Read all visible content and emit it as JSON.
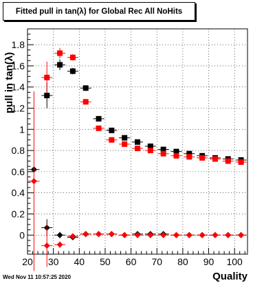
{
  "chart_data": {
    "type": "scatter",
    "title": "Fitted pull in tan(λ) for Global Rec All NoHits",
    "xlabel": "Quality",
    "ylabel": "pull in tan(λ)",
    "xlim": [
      20,
      105
    ],
    "ylim": [
      -0.18,
      1.95
    ],
    "xticks": [
      "20",
      "30",
      "40",
      "50",
      "60",
      "70",
      "80",
      "90",
      "100"
    ],
    "yticks": [
      "0",
      "0.2",
      "0.4",
      "0.6",
      "0.8",
      "1",
      "1.2",
      "1.4",
      "1.6",
      "1.8"
    ],
    "footer": "Wed Nov 11 10:57:25 2020",
    "series": [
      {
        "color": "#000000",
        "marker": "square",
        "x": [
          27.5,
          32.5,
          37.5,
          42.5,
          47.5,
          52.5,
          57.5,
          62.5,
          67.5,
          72.5,
          77.5,
          82.5,
          87.5,
          92.5,
          97.5,
          102.5
        ],
        "y": [
          1.32,
          1.61,
          1.55,
          1.39,
          1.1,
          0.99,
          0.92,
          0.88,
          0.84,
          0.81,
          0.79,
          0.77,
          0.75,
          0.73,
          0.72,
          0.71
        ],
        "yerr": [
          0.12,
          0.05,
          0.03,
          0.02,
          0.015,
          0.01,
          0.01,
          0.01,
          0.01,
          0.01,
          0.01,
          0.01,
          0.01,
          0.01,
          0.01,
          0.01
        ]
      },
      {
        "color": "#ff0000",
        "marker": "square",
        "x": [
          27.5,
          32.5,
          37.5,
          42.5,
          47.5,
          52.5,
          57.5,
          62.5,
          67.5,
          72.5,
          77.5,
          82.5,
          87.5,
          92.5,
          97.5,
          102.5
        ],
        "y": [
          1.49,
          1.72,
          1.68,
          1.26,
          1.01,
          0.9,
          0.86,
          0.82,
          0.8,
          0.77,
          0.75,
          0.74,
          0.73,
          0.72,
          0.7,
          0.69
        ],
        "yerr": [
          0.15,
          0.05,
          0.03,
          0.02,
          0.015,
          0.01,
          0.01,
          0.01,
          0.01,
          0.01,
          0.01,
          0.01,
          0.01,
          0.01,
          0.01,
          0.01
        ]
      },
      {
        "color": "#000000",
        "marker": "diamond",
        "x": [
          22.5,
          27.5,
          32.5,
          37.5,
          42.5,
          47.5,
          52.5,
          57.5,
          62.5,
          67.5,
          72.5,
          77.5,
          82.5,
          87.5,
          92.5,
          97.5,
          102.5
        ],
        "y": [
          0.62,
          0.07,
          0.0,
          -0.02,
          0.01,
          0.01,
          0.01,
          0.0,
          0.01,
          0.01,
          0.01,
          0.0,
          0.0,
          0.0,
          0.0,
          0.0,
          0.0
        ],
        "yerr": [
          0.03,
          0.08,
          0.03,
          0.02,
          0.01,
          0.01,
          0.01,
          0.01,
          0.01,
          0.01,
          0.01,
          0.01,
          0.01,
          0.01,
          0.01,
          0.01,
          0.01
        ]
      },
      {
        "color": "#ff0000",
        "marker": "diamond",
        "x": [
          22.5,
          27.5,
          32.5,
          37.5,
          42.5,
          47.5,
          52.5,
          57.5,
          62.5,
          67.5,
          72.5,
          77.5,
          82.5,
          87.5,
          92.5,
          97.5,
          102.5
        ],
        "y": [
          0.51,
          -0.1,
          -0.09,
          -0.01,
          0.01,
          0.01,
          0.01,
          0.0,
          0.0,
          0.0,
          0.0,
          0.0,
          0.0,
          0.0,
          0.0,
          0.0,
          0.0
        ],
        "yerr": [
          0.85,
          0.2,
          0.03,
          0.02,
          0.01,
          0.01,
          0.01,
          0.01,
          0.01,
          0.01,
          0.01,
          0.01,
          0.01,
          0.01,
          0.01,
          0.01,
          0.01
        ]
      }
    ]
  }
}
